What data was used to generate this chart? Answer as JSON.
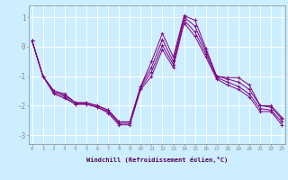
{
  "xlabel": "Windchill (Refroidissement éolien,°C)",
  "background_color": "#cceeff",
  "grid_color": "#ffffff",
  "line_color": "#800080",
  "x_hours": [
    0,
    1,
    2,
    3,
    4,
    5,
    6,
    7,
    8,
    9,
    10,
    11,
    12,
    13,
    14,
    15,
    16,
    17,
    18,
    19,
    20,
    21,
    22,
    23
  ],
  "series": [
    [
      0.2,
      -1.0,
      -1.5,
      -1.6,
      -1.9,
      -1.9,
      -2.0,
      -2.15,
      -2.55,
      -2.55,
      -1.35,
      -0.5,
      0.45,
      -0.35,
      1.05,
      0.9,
      -0.05,
      -1.0,
      -1.05,
      -1.05,
      -1.3,
      -2.0,
      -2.0,
      -2.4
    ],
    [
      0.2,
      -1.0,
      -1.5,
      -1.65,
      -1.9,
      -1.9,
      -2.0,
      -2.15,
      -2.55,
      -2.55,
      -1.35,
      -0.7,
      0.25,
      -0.5,
      1.0,
      0.7,
      -0.15,
      -1.0,
      -1.1,
      -1.2,
      -1.45,
      -2.0,
      -2.05,
      -2.45
    ],
    [
      0.2,
      -1.0,
      -1.55,
      -1.7,
      -1.95,
      -1.95,
      -2.05,
      -2.2,
      -2.6,
      -2.6,
      -1.4,
      -0.85,
      0.05,
      -0.6,
      0.9,
      0.5,
      -0.25,
      -1.05,
      -1.2,
      -1.35,
      -1.6,
      -2.1,
      -2.15,
      -2.55
    ],
    [
      0.2,
      -1.0,
      -1.6,
      -1.75,
      -1.95,
      -1.95,
      -2.05,
      -2.25,
      -2.65,
      -2.65,
      -1.45,
      -1.0,
      -0.1,
      -0.7,
      0.8,
      0.35,
      -0.35,
      -1.1,
      -1.3,
      -1.45,
      -1.7,
      -2.2,
      -2.2,
      -2.65
    ]
  ],
  "ylim": [
    -3.3,
    1.4
  ],
  "yticks": [
    -3,
    -2,
    -1,
    0,
    1
  ],
  "xlim": [
    -0.3,
    23.3
  ]
}
